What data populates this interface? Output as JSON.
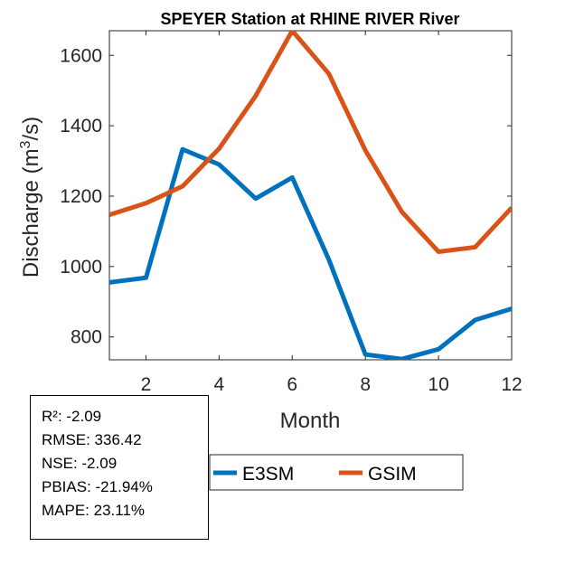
{
  "chart_data": {
    "type": "line",
    "title": "SPEYER  Station at  RHINE RIVER  River",
    "xlabel": "Month",
    "ylabel": "Discharge (m³/s)",
    "ylabel_parts": {
      "base": "Discharge (m",
      "sup": "3",
      "tail": "/s)"
    },
    "xlim": [
      1,
      12
    ],
    "ylim": [
      735,
      1670
    ],
    "xticks": [
      2,
      4,
      6,
      8,
      10,
      12
    ],
    "yticks": [
      800,
      1000,
      1200,
      1400,
      1600
    ],
    "grid": false,
    "legend_position": "bottom",
    "x": [
      1,
      2,
      3,
      4,
      5,
      6,
      7,
      8,
      9,
      10,
      11,
      12
    ],
    "series": [
      {
        "name": "E3SM",
        "color": "#0072BD",
        "values": [
          955,
          968,
          1333,
          1290,
          1193,
          1253,
          1020,
          750,
          737,
          765,
          848,
          880
        ]
      },
      {
        "name": "GSIM",
        "color": "#D95319",
        "values": [
          1147,
          1180,
          1228,
          1335,
          1485,
          1670,
          1548,
          1330,
          1155,
          1042,
          1055,
          1167
        ]
      }
    ]
  },
  "stats": {
    "r2": "R²: -2.09",
    "rmse": "RMSE: 336.42",
    "nse": "NSE: -2.09",
    "pbias": "PBIAS: -21.94%",
    "mape": "MAPE: 23.11%"
  }
}
